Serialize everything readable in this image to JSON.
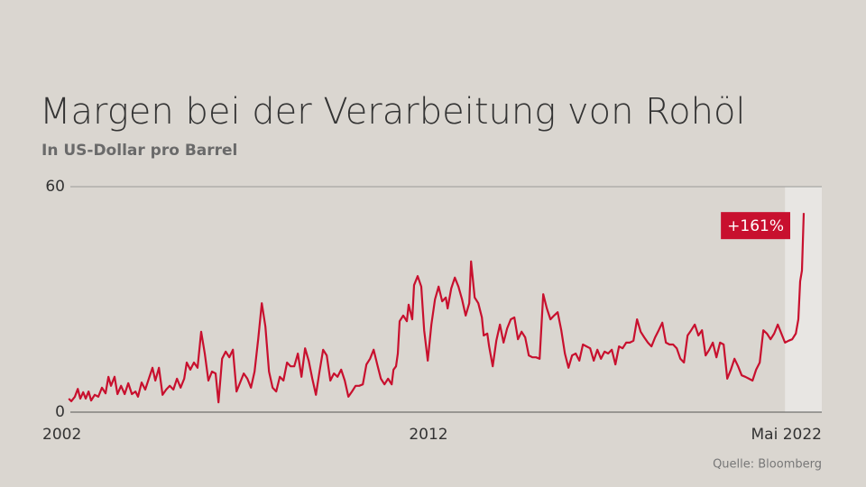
{
  "chart_data": {
    "type": "line",
    "title": "Margen bei der Verarbeitung von Rohöl",
    "subtitle": "In US-Dollar pro Barrel",
    "source": "Quelle: Bloomberg",
    "annotation": "+161%",
    "x": [
      2002.03,
      2002.1,
      2002.2,
      2002.28,
      2002.35,
      2002.43,
      2002.5,
      2002.58,
      2002.65,
      2002.75,
      2002.85,
      2002.95,
      2003.05,
      2003.13,
      2003.2,
      2003.3,
      2003.38,
      2003.48,
      2003.58,
      2003.68,
      2003.78,
      2003.88,
      2003.95,
      2004.05,
      2004.15,
      2004.25,
      2004.35,
      2004.43,
      2004.53,
      2004.63,
      2004.73,
      2004.83,
      2004.93,
      2005.03,
      2005.13,
      2005.23,
      2005.3,
      2005.4,
      2005.5,
      2005.6,
      2005.7,
      2005.8,
      2005.9,
      2006.0,
      2006.1,
      2006.18,
      2006.28,
      2006.38,
      2006.48,
      2006.58,
      2006.68,
      2006.78,
      2006.88,
      2006.98,
      2007.08,
      2007.18,
      2007.28,
      2007.38,
      2007.48,
      2007.58,
      2007.68,
      2007.78,
      2007.88,
      2007.98,
      2008.08,
      2008.18,
      2008.28,
      2008.38,
      2008.48,
      2008.58,
      2008.68,
      2008.78,
      2008.88,
      2008.98,
      2009.08,
      2009.18,
      2009.28,
      2009.38,
      2009.48,
      2009.58,
      2009.68,
      2009.78,
      2009.88,
      2009.98,
      2010.08,
      2010.18,
      2010.28,
      2010.38,
      2010.48,
      2010.58,
      2010.68,
      2010.78,
      2010.88,
      2010.98,
      2011.03,
      2011.1,
      2011.15,
      2011.2,
      2011.3,
      2011.4,
      2011.45,
      2011.55,
      2011.6,
      2011.7,
      2011.8,
      2011.88,
      2011.98,
      2012.08,
      2012.18,
      2012.28,
      2012.38,
      2012.48,
      2012.53,
      2012.63,
      2012.73,
      2012.83,
      2012.93,
      2013.03,
      2013.13,
      2013.18,
      2013.28,
      2013.38,
      2013.48,
      2013.53,
      2013.63,
      2013.68,
      2013.78,
      2013.88,
      2013.98,
      2014.08,
      2014.18,
      2014.28,
      2014.38,
      2014.48,
      2014.58,
      2014.68,
      2014.78,
      2014.88,
      2014.98,
      2015.08,
      2015.18,
      2015.28,
      2015.38,
      2015.48,
      2015.58,
      2015.68,
      2015.78,
      2015.88,
      2015.98,
      2016.08,
      2016.18,
      2016.28,
      2016.38,
      2016.48,
      2016.58,
      2016.68,
      2016.78,
      2016.88,
      2016.98,
      2017.08,
      2017.18,
      2017.28,
      2017.38,
      2017.48,
      2017.58,
      2017.68,
      2017.78,
      2017.88,
      2017.98,
      2018.08,
      2018.18,
      2018.28,
      2018.38,
      2018.48,
      2018.58,
      2018.68,
      2018.78,
      2018.88,
      2018.98,
      2019.08,
      2019.18,
      2019.28,
      2019.38,
      2019.48,
      2019.58,
      2019.68,
      2019.78,
      2019.88,
      2019.98,
      2020.08,
      2020.18,
      2020.28,
      2020.38,
      2020.48,
      2020.58,
      2020.68,
      2020.78,
      2020.88,
      2020.98,
      2021.08,
      2021.18,
      2021.28,
      2021.38,
      2021.48,
      2021.58,
      2021.68,
      2021.78,
      2021.88,
      2021.98,
      2022.08,
      2022.18,
      2022.25,
      2022.3,
      2022.35,
      2022.4
    ],
    "series": [
      {
        "color": "#c8102e",
        "values": [
          3.6,
          2.9,
          4.1,
          6.2,
          3.6,
          5.3,
          3.6,
          5.5,
          3.1,
          4.6,
          4.1,
          6.5,
          5.0,
          9.4,
          7.0,
          9.4,
          4.8,
          7.0,
          4.8,
          7.7,
          4.8,
          5.5,
          4.1,
          7.9,
          6.0,
          8.9,
          11.8,
          8.4,
          11.8,
          4.6,
          6.0,
          7.0,
          6.0,
          8.9,
          6.5,
          8.9,
          13.2,
          11.3,
          13.2,
          11.8,
          21.4,
          15.6,
          8.4,
          10.8,
          10.3,
          2.6,
          14.2,
          16.1,
          14.6,
          16.6,
          5.5,
          7.9,
          10.3,
          8.9,
          6.5,
          10.8,
          19.4,
          29.0,
          22.8,
          10.8,
          6.5,
          5.5,
          9.4,
          8.4,
          13.2,
          12.2,
          12.2,
          15.6,
          9.4,
          17.0,
          13.7,
          8.9,
          4.6,
          10.8,
          16.6,
          15.1,
          8.4,
          10.3,
          9.4,
          11.3,
          8.4,
          4.1,
          5.5,
          7.0,
          7.0,
          7.4,
          12.7,
          14.2,
          16.6,
          12.7,
          8.9,
          7.4,
          8.9,
          7.4,
          11.3,
          12.2,
          15.6,
          24.2,
          25.7,
          24.2,
          28.6,
          24.7,
          33.8,
          36.2,
          33.4,
          21.8,
          13.7,
          23.3,
          30.0,
          33.4,
          29.5,
          30.5,
          27.6,
          32.9,
          35.8,
          33.4,
          30.0,
          25.7,
          29.0,
          40.1,
          30.5,
          29.0,
          25.2,
          20.4,
          20.9,
          17.5,
          12.2,
          19.0,
          23.3,
          18.5,
          22.3,
          24.7,
          25.2,
          19.4,
          21.4,
          19.9,
          15.1,
          14.6,
          14.6,
          14.2,
          31.4,
          27.6,
          24.7,
          25.7,
          26.6,
          21.8,
          15.6,
          11.8,
          15.1,
          15.6,
          13.7,
          18.0,
          17.5,
          17.0,
          13.7,
          16.6,
          14.2,
          16.1,
          15.6,
          16.6,
          12.7,
          17.5,
          17.0,
          18.5,
          18.5,
          19.0,
          24.7,
          21.4,
          19.9,
          18.5,
          17.5,
          19.9,
          21.8,
          23.8,
          18.5,
          18.0,
          18.0,
          17.0,
          14.2,
          13.2,
          20.4,
          21.8,
          23.3,
          20.4,
          21.8,
          15.1,
          16.6,
          18.5,
          14.6,
          18.5,
          18.0,
          8.9,
          11.3,
          14.2,
          12.2,
          9.8,
          9.4,
          8.9,
          8.4,
          11.3,
          13.2,
          21.8,
          20.9,
          19.4,
          20.9,
          23.3,
          20.9,
          18.5,
          19.0,
          19.4,
          20.9,
          24.7,
          34.8,
          37.7,
          53.0
        ]
      }
    ],
    "xlim": [
      2002,
      2022.9
    ],
    "xticks": [
      2002,
      2012,
      {
        "value": 2022.35,
        "label": "Mai 2022"
      }
    ],
    "ylim": [
      0,
      60
    ],
    "yticks": [
      0,
      60
    ],
    "highlight_x": [
      2021.88,
      2022.9
    ],
    "grid": true
  }
}
